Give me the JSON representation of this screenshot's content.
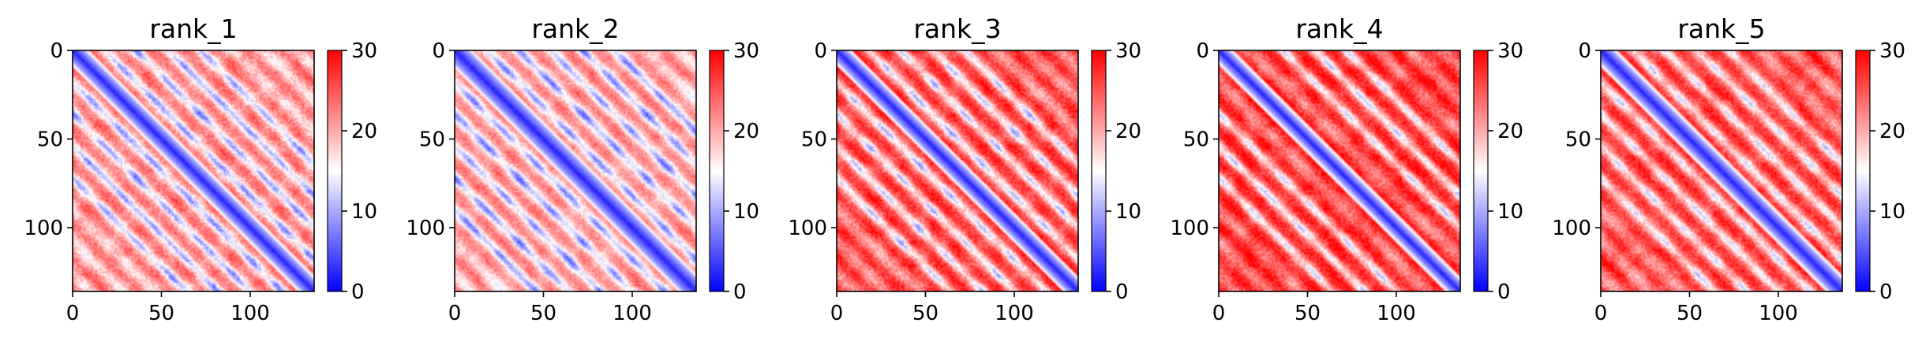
{
  "chart_data": [
    {
      "type": "heatmap",
      "title": "rank_1",
      "matrix_size": 136,
      "colormap": "bwr",
      "color_range": [
        0,
        30
      ],
      "x_ticks": [
        0,
        50,
        100
      ],
      "y_ticks": [
        0,
        50,
        100
      ],
      "colorbar_ticks": [
        0,
        10,
        20,
        30
      ],
      "pattern": {
        "diag_width": 5.5,
        "diag_center": 1.5,
        "off_diagonal_level": 20,
        "secondary_bands": [
          18,
          36,
          54,
          72
        ],
        "band_strength": 9.5,
        "noise": 3.0
      }
    },
    {
      "type": "heatmap",
      "title": "rank_2",
      "matrix_size": 136,
      "colormap": "bwr",
      "color_range": [
        0,
        30
      ],
      "x_ticks": [
        0,
        50,
        100
      ],
      "y_ticks": [
        0,
        50,
        100
      ],
      "colorbar_ticks": [
        0,
        10,
        20,
        30
      ],
      "pattern": {
        "diag_width": 6.5,
        "diag_center": 1.5,
        "off_diagonal_level": 19,
        "secondary_bands": [
          18,
          36,
          54,
          72,
          90
        ],
        "band_strength": 9.0,
        "noise": 2.5
      }
    },
    {
      "type": "heatmap",
      "title": "rank_3",
      "matrix_size": 136,
      "colormap": "bwr",
      "color_range": [
        0,
        30
      ],
      "x_ticks": [
        0,
        50,
        100
      ],
      "y_ticks": [
        0,
        50,
        100
      ],
      "colorbar_ticks": [
        0,
        10,
        20,
        30
      ],
      "pattern": {
        "diag_width": 5.0,
        "diag_center": 1.5,
        "off_diagonal_level": 24,
        "secondary_bands": [
          18,
          36,
          54,
          72
        ],
        "band_strength": 11.0,
        "noise": 3.0
      }
    },
    {
      "type": "heatmap",
      "title": "rank_4",
      "matrix_size": 136,
      "colormap": "bwr",
      "color_range": [
        0,
        30
      ],
      "x_ticks": [
        0,
        50,
        100
      ],
      "y_ticks": [
        0,
        50,
        100
      ],
      "colorbar_ticks": [
        0,
        10,
        20,
        30
      ],
      "pattern": {
        "diag_width": 4.5,
        "diag_center": 1.5,
        "off_diagonal_level": 25,
        "secondary_bands": [
          36,
          54,
          72
        ],
        "band_strength": 11.0,
        "noise": 3.0
      }
    },
    {
      "type": "heatmap",
      "title": "rank_5",
      "matrix_size": 136,
      "colormap": "bwr",
      "color_range": [
        0,
        30
      ],
      "x_ticks": [
        0,
        50,
        100
      ],
      "y_ticks": [
        0,
        50,
        100
      ],
      "colorbar_ticks": [
        0,
        10,
        20,
        30
      ],
      "pattern": {
        "diag_width": 5.5,
        "diag_center": 1.5,
        "off_diagonal_level": 24,
        "secondary_bands": [
          18,
          36,
          54,
          72
        ],
        "band_strength": 9.0,
        "noise": 3.0
      }
    }
  ]
}
